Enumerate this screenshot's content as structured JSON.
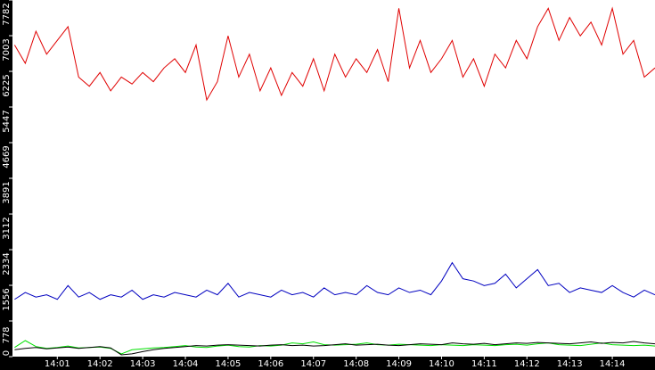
{
  "chart_data": {
    "type": "line",
    "x": [
      0,
      0.25,
      0.5,
      0.75,
      1,
      1.25,
      1.5,
      1.75,
      2,
      2.25,
      2.5,
      2.75,
      3,
      3.25,
      3.5,
      3.75,
      4,
      4.25,
      4.5,
      4.75,
      5,
      5.25,
      5.5,
      5.75,
      6,
      6.25,
      6.5,
      6.75,
      7,
      7.25,
      7.5,
      7.75,
      8,
      8.25,
      8.5,
      8.75,
      9,
      9.25,
      9.5,
      9.75,
      10,
      10.25,
      10.5,
      10.75,
      11,
      11.25,
      11.5,
      11.75,
      12,
      12.25,
      12.5,
      12.75,
      13,
      13.25,
      13.5,
      13.75,
      14,
      14.25,
      14.5,
      14.75,
      15
    ],
    "xlim": [
      -0.05,
      15
    ],
    "xticks": [
      {
        "value": 1,
        "label": "14:01"
      },
      {
        "value": 2,
        "label": "14:02"
      },
      {
        "value": 3,
        "label": "14:03"
      },
      {
        "value": 4,
        "label": "14:04"
      },
      {
        "value": 5,
        "label": "14:05"
      },
      {
        "value": 6,
        "label": "14:06"
      },
      {
        "value": 7,
        "label": "14:07"
      },
      {
        "value": 8,
        "label": "14:08"
      },
      {
        "value": 9,
        "label": "14:09"
      },
      {
        "value": 10,
        "label": "14:10"
      },
      {
        "value": 11,
        "label": "14:11"
      },
      {
        "value": 12,
        "label": "14:12"
      },
      {
        "value": 13,
        "label": "14:13"
      },
      {
        "value": 14,
        "label": "14:14"
      }
    ],
    "ylim": [
      0,
      7782
    ],
    "yticks": [
      0,
      778,
      1556,
      2334,
      3112,
      3891,
      4669,
      5447,
      6225,
      7003,
      7782
    ],
    "series": [
      {
        "color": "#e00000",
        "values": [
          6800,
          6400,
          7100,
          6600,
          6900,
          7200,
          6100,
          5900,
          6200,
          5800,
          6100,
          5950,
          6200,
          6000,
          6300,
          6500,
          6200,
          6800,
          5600,
          6000,
          7000,
          6100,
          6600,
          5800,
          6300,
          5700,
          6200,
          5900,
          6500,
          5800,
          6600,
          6100,
          6500,
          6200,
          6700,
          6000,
          7600,
          6300,
          6900,
          6200,
          6500,
          6900,
          6100,
          6500,
          5900,
          6600,
          6300,
          6900,
          6500,
          7200,
          7600,
          6900,
          7400,
          7000,
          7300,
          6800,
          7600,
          6600,
          6900,
          6100,
          6300
        ]
      },
      {
        "color": "#0000c0",
        "values": [
          1250,
          1400,
          1300,
          1350,
          1250,
          1550,
          1300,
          1400,
          1250,
          1350,
          1300,
          1450,
          1250,
          1350,
          1300,
          1400,
          1350,
          1300,
          1450,
          1350,
          1600,
          1300,
          1400,
          1350,
          1300,
          1450,
          1350,
          1400,
          1300,
          1500,
          1350,
          1400,
          1350,
          1550,
          1400,
          1350,
          1500,
          1400,
          1450,
          1350,
          1650,
          2050,
          1700,
          1650,
          1550,
          1600,
          1800,
          1500,
          1700,
          1900,
          1550,
          1600,
          1400,
          1500,
          1450,
          1400,
          1550,
          1400,
          1300,
          1450,
          1350
        ]
      },
      {
        "color": "#00e000",
        "values": [
          200,
          350,
          220,
          180,
          200,
          230,
          190,
          200,
          210,
          180,
          60,
          150,
          170,
          190,
          200,
          220,
          240,
          210,
          200,
          230,
          250,
          220,
          210,
          240,
          230,
          250,
          300,
          280,
          320,
          260,
          250,
          260,
          270,
          300,
          260,
          250,
          270,
          260,
          250,
          240,
          260,
          250,
          240,
          260,
          250,
          240,
          260,
          270,
          250,
          280,
          300,
          260,
          250,
          240,
          270,
          300,
          260,
          250,
          240,
          250,
          230
        ]
      },
      {
        "color": "#000000",
        "values": [
          150,
          180,
          200,
          170,
          190,
          210,
          180,
          200,
          220,
          190,
          40,
          60,
          110,
          150,
          180,
          200,
          220,
          240,
          230,
          250,
          260,
          250,
          240,
          230,
          250,
          260,
          240,
          250,
          230,
          240,
          260,
          280,
          250,
          260,
          270,
          250,
          240,
          260,
          280,
          270,
          260,
          300,
          280,
          270,
          290,
          260,
          280,
          300,
          290,
          310,
          300,
          290,
          280,
          300,
          320,
          290,
          310,
          300,
          330,
          300,
          280
        ]
      }
    ]
  }
}
